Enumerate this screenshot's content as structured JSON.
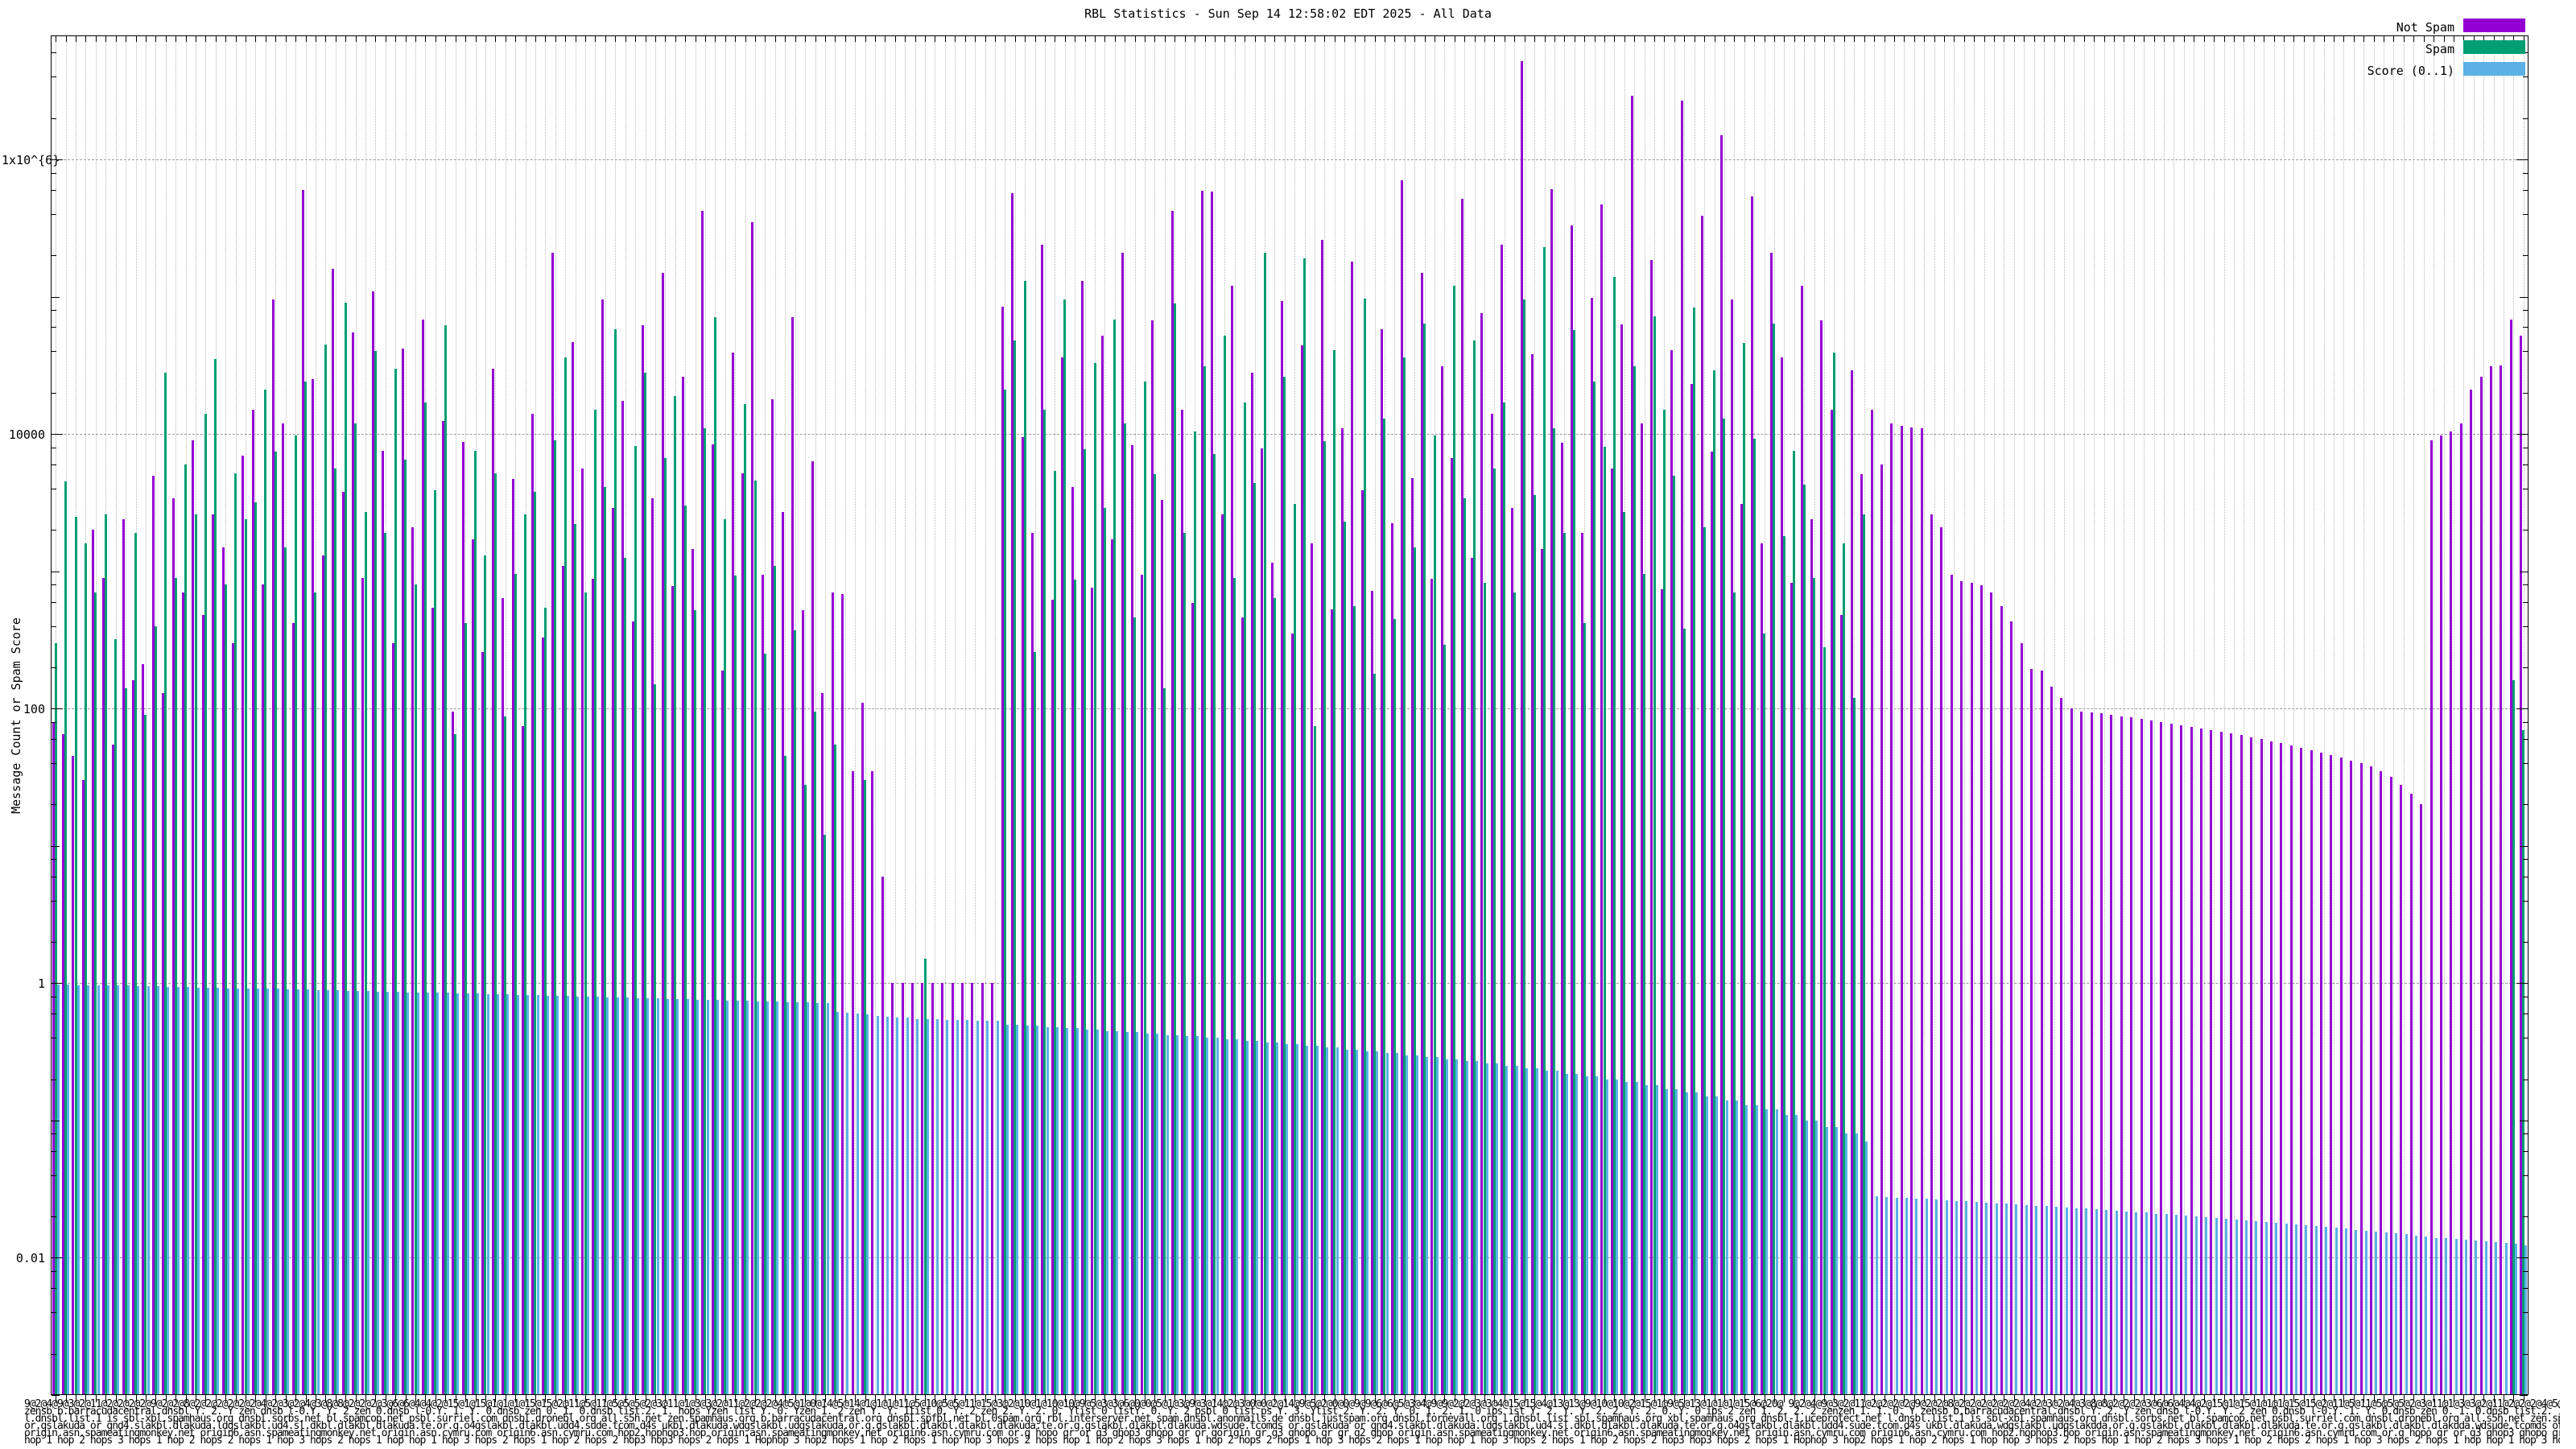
{
  "title": "RBL Statistics - Sun Sep 14 12:58:02 EDT 2025 - All Data",
  "ylabel": "Message Count or Spam Score",
  "legend": [
    {
      "label": "Not Spam",
      "color": "#9400d3"
    },
    {
      "label": "Spam",
      "color": "#009e73"
    },
    {
      "label": "Score (0..1)",
      "color": "#5bb0e6"
    }
  ],
  "xlabel_lines": [
    "9@2@4@9@3@2@11@2@2@2@2@9@2@2@8@2@2@2@2@2@2@4@2@3@2@4@3@8@8@2@2@2@3@6@6@4@4@2@15@1@15@1@1@1@15@15@2@11@5@11@5@5@5@2@3@11@1@3@3@2@11@2@2@2@4@5@1@0@14@5@14@1@1@1@11@5@10@5@5@11@15@3@2@10@1@10@10@9@5@3@3@6@0@0@5@1@3@9@3@14@2@3@0@0@2@14@9@5@2@0@0@9@9@6@6@5@3@4@9@9@2@2@3@3@4@15@15@4@13@13@9@10@10@2@15@1@9@5@13@1@1@1@15@6@20@",
    "zensb b.barracudacentral.dnsbl Y. 2. Y zen dnsb l-0.Y. Y. 2 zen 0.dnsb l-0.Y. 1. Y. 0.dnsb zen 0. 1. 0.dnsb list.2. 1. hops Yzen list Y. 0. Yzen 1. 2 zen Y. Y. 1list 0. Y. 2 zen 2. Y. 2. 0. Ylist 0 listY. 0. Y. 2 psbl 0 list ps Y. 3. Ylist 2. Y. 2. Y. 0. 1. 2. 1. 0 ips ist Y. 2. Y. Y. 2. 2. Y. 2. 0. Y. 0 ips 2 zen 1. 2. 2. 2 zenzen 1. 1. 0. Y",
    "l.dnsbl.list.1 is sbl-xbl.spamhaus.org dnsbl.sorbs.net bl.spamcop.net psbl.surriel.com dnsbl.dronebl.org all.s5h.net zen.spamhaus.org b.barracudacentral.org dnsbl.spfbl.net bl.0spam.org rbl.interserver.net spam.dnsbl.anonmails.de dnsbl.justspam.org dnsbl.tornevall.org l.dnsbl.list sbl.spamhaus.org xbl.spamhaus.org dnsbl-1.uceprotect.net",
    "or.gslakuda or gnd4.slakbl.dlakuda.ldgslakbl.ud4.sl.dkbl.dlakbl.dlakuda.te.or.g.o4gslakbl.dlakbl.udd4.sude.tcom.d4s ukbl.dlakuda.wdgslakbl.udgslakuda.or.g.gslakbl.dlakbl.dlakbl.dlakuda.te.or.g.gslakbl.dlakbl.dlakuda.wdsude.tcomds",
    "origin.asn.spameatingmonkey.net origin6.asn.spameatingmonkey.net origin.asn.cymru.com origin6.asn.cymru.com hop2.hophop3.hop origin.asn.spameatingmonkey.net origin6.asn.cymru.com or.g hopo gr or g3 ghop3 ghopo gr or gorigin gr g3 ghopo gr gr g2 ghop",
    "hop   1 hop     2 hops    3 hops 1 hop 2 hops 2 hops 1 hop 3 hops 2 hops 1 hop hop 1 hop   3 hops 2 hops 1 hop 2 hops 2 hop3 hop3 hops 2 hops   1 Hophop 3 hop2 hops 1 hop   2 hops   1 hop hop 3 hops 2 hops"
  ],
  "chart_data": {
    "type": "bar",
    "yscale": "log",
    "ylim": [
      0.001,
      8000000
    ],
    "grid": true,
    "legend_position": "top-right",
    "title": "RBL Statistics - Sun Sep 14 12:58:02 EDT 2025 - All Data",
    "xlabel": "",
    "ylabel": "Message Count or Spam Score",
    "yticks": [
      {
        "value": 1000000,
        "label": "1x10^{6}"
      },
      {
        "value": 10000,
        "label": "10000"
      },
      {
        "value": 100,
        "label": "100"
      },
      {
        "value": 1,
        "label": "1"
      },
      {
        "value": 0.01,
        "label": "0.01"
      }
    ],
    "series_names": [
      "Not Spam",
      "Spam",
      "Score (0..1)"
    ],
    "series_colors": [
      "#9400d3",
      "#009e73",
      "#5bb0e6"
    ],
    "clusters_note": "Each cluster = one RBL/DNSBL x-entry: [not_spam_count, spam_count, score]; 0 = bar absent; values estimated from pixels, log scale",
    "clusters": [
      [
        80,
        300,
        0.98
      ],
      [
        65,
        4500,
        0.98
      ],
      [
        45,
        2500,
        0.97
      ],
      [
        30,
        1600,
        0.97
      ],
      [
        2000,
        700,
        0.97
      ],
      [
        900,
        2600,
        0.96
      ],
      [
        55,
        320,
        0.96
      ],
      [
        2400,
        140,
        0.96
      ],
      [
        160,
        1900,
        0.95
      ],
      [
        210,
        90,
        0.95
      ],
      [
        5000,
        400,
        0.95
      ],
      [
        130,
        28000,
        0.94
      ],
      [
        3400,
        900,
        0.94
      ],
      [
        700,
        6000,
        0.94
      ],
      [
        9000,
        2600,
        0.93
      ],
      [
        480,
        14000,
        0.93
      ],
      [
        2600,
        35000,
        0.93
      ],
      [
        1500,
        800,
        0.92
      ],
      [
        300,
        5200,
        0.92
      ],
      [
        7000,
        2400,
        0.92
      ],
      [
        15000,
        3200,
        0.91
      ],
      [
        800,
        21000,
        0.91
      ],
      [
        95000,
        7400,
        0.91
      ],
      [
        12000,
        1500,
        0.9
      ],
      [
        420,
        9800,
        0.9
      ],
      [
        600000,
        24000,
        0.9
      ],
      [
        25000,
        700,
        0.89
      ],
      [
        1300,
        45000,
        0.89
      ],
      [
        160000,
        5600,
        0.89
      ],
      [
        3800,
        90000,
        0.88
      ],
      [
        55000,
        12000,
        0.88
      ],
      [
        900,
        2700,
        0.88
      ],
      [
        110000,
        40000,
        0.87
      ],
      [
        7600,
        1900,
        0.87
      ],
      [
        300,
        30000,
        0.87
      ],
      [
        42000,
        6500,
        0.86
      ],
      [
        2100,
        800,
        0.86
      ],
      [
        68000,
        17000,
        0.86
      ],
      [
        540,
        3900,
        0.85
      ],
      [
        12500,
        62000,
        0.85
      ],
      [
        95,
        65,
        0.84
      ],
      [
        8800,
        420,
        0.84
      ],
      [
        1700,
        7600,
        0.84
      ],
      [
        260,
        1300,
        0.83
      ],
      [
        30000,
        5200,
        0.83
      ],
      [
        640,
        88,
        0.83
      ],
      [
        4700,
        960,
        0.82
      ],
      [
        75,
        2600,
        0.82
      ],
      [
        14000,
        3800,
        0.82
      ],
      [
        330,
        540,
        0.81
      ],
      [
        210000,
        9000,
        0.81
      ],
      [
        1100,
        36000,
        0.81
      ],
      [
        47000,
        2200,
        0.8
      ],
      [
        5600,
        700,
        0.8
      ],
      [
        880,
        15000,
        0.8
      ],
      [
        96000,
        4100,
        0.79
      ],
      [
        2900,
        58000,
        0.79
      ],
      [
        17500,
        1250,
        0.79
      ],
      [
        430,
        8200,
        0.78
      ],
      [
        62000,
        28000,
        0.78
      ],
      [
        3400,
        150,
        0.78
      ],
      [
        150000,
        6700,
        0.77
      ],
      [
        780,
        19000,
        0.77
      ],
      [
        26000,
        3000,
        0.77
      ],
      [
        1450,
        520,
        0.76
      ],
      [
        420000,
        11000,
        0.76
      ],
      [
        8400,
        71000,
        0.76
      ],
      [
        190,
        2400,
        0.75
      ],
      [
        39000,
        930,
        0.75
      ],
      [
        5200,
        16500,
        0.75
      ],
      [
        350000,
        4600,
        0.74
      ],
      [
        940,
        250,
        0.74
      ],
      [
        18000,
        1100,
        0.74
      ],
      [
        2700,
        45,
        0.73
      ],
      [
        71000,
        370,
        0.73
      ],
      [
        520,
        28,
        0.73
      ],
      [
        6300,
        95,
        0.72
      ],
      [
        130,
        12,
        0.72
      ],
      [
        700,
        55,
        0.62
      ],
      [
        680,
        0,
        0.61
      ],
      [
        35,
        0,
        0.6
      ],
      [
        110,
        30,
        0.59
      ],
      [
        35,
        0,
        0.58
      ],
      [
        6,
        0,
        0.57
      ],
      [
        1,
        0,
        0.56
      ],
      [
        1,
        0,
        0.56
      ],
      [
        1,
        0,
        0.55
      ],
      [
        1,
        1.5,
        0.55
      ],
      [
        1,
        0,
        0.55
      ],
      [
        1,
        0,
        0.54
      ],
      [
        1,
        0,
        0.54
      ],
      [
        1,
        0,
        0.54
      ],
      [
        1,
        0,
        0.53
      ],
      [
        1,
        0,
        0.53
      ],
      [
        1,
        0,
        0.53
      ],
      [
        85000,
        21000,
        0.5
      ],
      [
        570000,
        48000,
        0.5
      ],
      [
        9500,
        130000,
        0.49
      ],
      [
        1900,
        260,
        0.49
      ],
      [
        240000,
        15000,
        0.48
      ],
      [
        620,
        5400,
        0.48
      ],
      [
        36000,
        95000,
        0.47
      ],
      [
        4100,
        870,
        0.47
      ],
      [
        130000,
        7800,
        0.46
      ],
      [
        760,
        33000,
        0.46
      ],
      [
        52000,
        2900,
        0.45
      ],
      [
        1700,
        68000,
        0.45
      ],
      [
        210000,
        12000,
        0.44
      ],
      [
        8300,
        460,
        0.44
      ],
      [
        950,
        24000,
        0.43
      ],
      [
        67000,
        5100,
        0.43
      ],
      [
        3300,
        140,
        0.42
      ],
      [
        420000,
        89000,
        0.42
      ],
      [
        15000,
        1900,
        0.41
      ],
      [
        590,
        10500,
        0.41
      ],
      [
        590000,
        31000,
        0.4
      ],
      [
        580000,
        7200,
        0.4
      ],
      [
        2600,
        52000,
        0.39
      ],
      [
        120000,
        900,
        0.39
      ],
      [
        460,
        17000,
        0.38
      ],
      [
        28000,
        4400,
        0.38
      ],
      [
        7900,
        210000,
        0.37
      ],
      [
        1150,
        640,
        0.37
      ],
      [
        93000,
        26000,
        0.36
      ],
      [
        350,
        3100,
        0.36
      ],
      [
        44000,
        190000,
        0.35
      ],
      [
        1600,
        75,
        0.35
      ],
      [
        260000,
        8900,
        0.34
      ],
      [
        530,
        41000,
        0.34
      ],
      [
        11000,
        2300,
        0.33
      ],
      [
        180000,
        560,
        0.33
      ],
      [
        3900,
        97000,
        0.32
      ],
      [
        720,
        180,
        0.32
      ],
      [
        58000,
        13000,
        0.31
      ],
      [
        2250,
        450,
        0.31
      ],
      [
        700000,
        36000,
        0.3
      ],
      [
        4800,
        1500,
        0.3
      ],
      [
        150000,
        64000,
        0.29
      ],
      [
        880,
        9700,
        0.29
      ],
      [
        31000,
        290,
        0.28
      ],
      [
        6700,
        120000,
        0.28
      ],
      [
        520000,
        3400,
        0.27
      ],
      [
        1250,
        48000,
        0.27
      ],
      [
        76000,
        820,
        0.26
      ],
      [
        14000,
        5600,
        0.26
      ],
      [
        240000,
        17000,
        0.25
      ],
      [
        2900,
        700,
        0.25
      ],
      [
        5200000,
        95000,
        0.24
      ],
      [
        38000,
        3600,
        0.24
      ],
      [
        1450,
        230000,
        0.23
      ],
      [
        610000,
        11000,
        0.23
      ],
      [
        8600,
        1900,
        0.22
      ],
      [
        330000,
        57000,
        0.22
      ],
      [
        1900,
        420,
        0.21
      ],
      [
        98000,
        24000,
        0.21
      ],
      [
        470000,
        8100,
        0.2
      ],
      [
        5600,
        140000,
        0.2
      ],
      [
        63000,
        2700,
        0.19
      ],
      [
        2900000,
        31000,
        0.19
      ],
      [
        12000,
        960,
        0.18
      ],
      [
        185000,
        72000,
        0.18
      ],
      [
        740,
        15000,
        0.17
      ],
      [
        41000,
        5000,
        0.17
      ],
      [
        2700000,
        380,
        0.16
      ],
      [
        23000,
        83000,
        0.16
      ],
      [
        390000,
        2100,
        0.15
      ],
      [
        7400,
        29000,
        0.15
      ],
      [
        1500000,
        13000,
        0.14
      ],
      [
        95000,
        700,
        0.14
      ],
      [
        3100,
        46000,
        0.13
      ],
      [
        540000,
        9200,
        0.13
      ],
      [
        1600,
        350,
        0.12
      ],
      [
        210000,
        64000,
        0.12
      ],
      [
        36000,
        1800,
        0.11
      ],
      [
        830,
        7600,
        0.11
      ],
      [
        120000,
        4300,
        0.1
      ],
      [
        2400,
        900,
        0.1
      ],
      [
        67000,
        280,
        0.09
      ],
      [
        15000,
        39000,
        0.09
      ],
      [
        480,
        1600,
        0.08
      ],
      [
        29000,
        120,
        0.08
      ],
      [
        5100,
        2600,
        0.07
      ],
      [
        15000,
        0,
        0.028
      ],
      [
        6000,
        0,
        0.0278
      ],
      [
        12000,
        0,
        0.0275
      ],
      [
        11500,
        0,
        0.0273
      ],
      [
        11200,
        0,
        0.027
      ],
      [
        11000,
        0,
        0.0268
      ],
      [
        2600,
        0,
        0.0265
      ],
      [
        2100,
        0,
        0.0263
      ],
      [
        950,
        0,
        0.026
      ],
      [
        850,
        0,
        0.0258
      ],
      [
        820,
        0,
        0.0255
      ],
      [
        790,
        0,
        0.0253
      ],
      [
        700,
        0,
        0.025
      ],
      [
        560,
        0,
        0.0248
      ],
      [
        430,
        0,
        0.0245
      ],
      [
        300,
        0,
        0.0243
      ],
      [
        195,
        0,
        0.024
      ],
      [
        190,
        0,
        0.0238
      ],
      [
        145,
        0,
        0.0235
      ],
      [
        120,
        0,
        0.0233
      ],
      [
        100,
        0,
        0.023
      ],
      [
        95,
        0,
        0.0228
      ],
      [
        94,
        0,
        0.0225
      ],
      [
        92,
        0,
        0.0223
      ],
      [
        90,
        0,
        0.022
      ],
      [
        88,
        0,
        0.0218
      ],
      [
        86,
        0,
        0.0215
      ],
      [
        84,
        0,
        0.0213
      ],
      [
        82,
        0,
        0.021
      ],
      [
        80,
        0,
        0.0208
      ],
      [
        78,
        0,
        0.0205
      ],
      [
        76,
        0,
        0.0203
      ],
      [
        74,
        0,
        0.02
      ],
      [
        72,
        0,
        0.0198
      ],
      [
        70,
        0,
        0.0195
      ],
      [
        68,
        0,
        0.0193
      ],
      [
        66,
        0,
        0.019
      ],
      [
        64,
        0,
        0.0188
      ],
      [
        62,
        0,
        0.0185
      ],
      [
        60,
        0,
        0.0183
      ],
      [
        58,
        0,
        0.018
      ],
      [
        56,
        0,
        0.0178
      ],
      [
        54,
        0,
        0.0175
      ],
      [
        52,
        0,
        0.0173
      ],
      [
        50,
        0,
        0.017
      ],
      [
        48,
        0,
        0.0168
      ],
      [
        46,
        0,
        0.0165
      ],
      [
        44,
        0,
        0.0163
      ],
      [
        42,
        0,
        0.016
      ],
      [
        40,
        0,
        0.0158
      ],
      [
        38,
        0,
        0.0155
      ],
      [
        35,
        0,
        0.0153
      ],
      [
        32,
        0,
        0.015
      ],
      [
        28,
        0,
        0.0148
      ],
      [
        24,
        0,
        0.0145
      ],
      [
        20,
        0,
        0.0143
      ],
      [
        9000,
        0,
        0.014
      ],
      [
        9800,
        0,
        0.014
      ],
      [
        10500,
        0,
        0.0138
      ],
      [
        12000,
        0,
        0.0136
      ],
      [
        21000,
        0,
        0.0134
      ],
      [
        26000,
        0,
        0.0132
      ],
      [
        31000,
        0,
        0.013
      ],
      [
        31500,
        0,
        0.0128
      ],
      [
        68000,
        160,
        0.0126
      ],
      [
        52000,
        70,
        0.0124
      ]
    ]
  }
}
